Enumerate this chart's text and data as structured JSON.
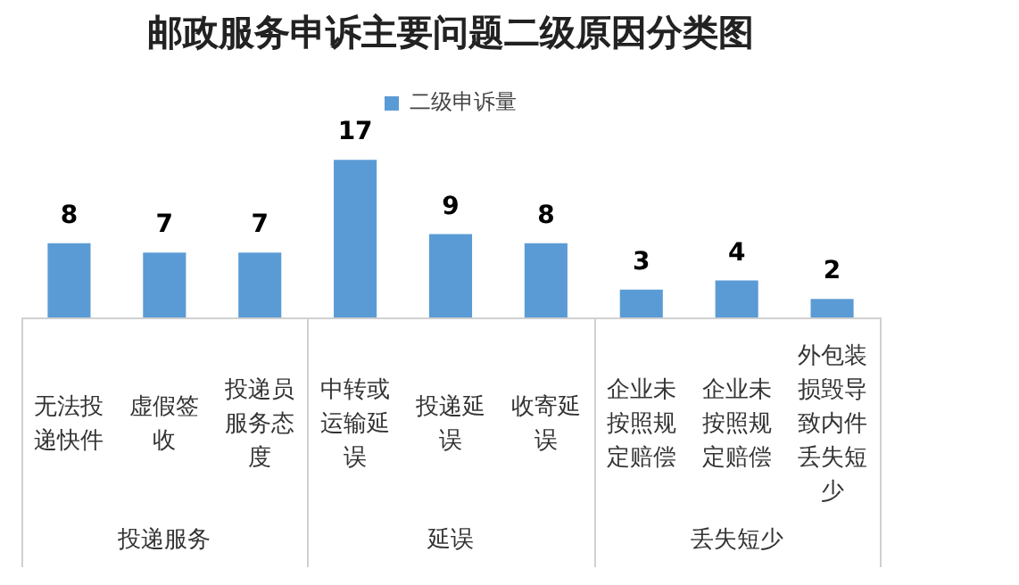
{
  "chart_data": {
    "type": "bar",
    "title": "邮政服务申诉主要问题二级原因分类图",
    "categories": [
      "无法投递快件",
      "虚假签收",
      "投递员服务态度",
      "中转或运输延误",
      "投递延误",
      "收寄延误",
      "企业未按照规定赔偿",
      "企业未按照规定赔偿",
      "外包装损毁导致内件丢失短少"
    ],
    "series": [
      {
        "name": "二级申诉量",
        "color": "#5b9bd5",
        "values": [
          8,
          7,
          7,
          17,
          9,
          8,
          3,
          4,
          2
        ]
      }
    ],
    "data_labels": true,
    "legend": "top",
    "grid": false,
    "annotations": [
      "投递服务",
      "延误",
      "丢失短少"
    ]
  }
}
